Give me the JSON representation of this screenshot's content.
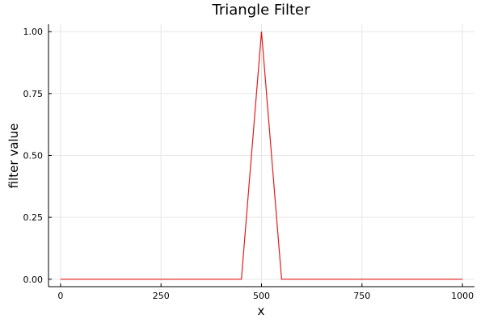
{
  "chart_data": {
    "type": "line",
    "title": "Triangle Filter",
    "xlabel": "x",
    "ylabel": "filter value",
    "xlim": [
      -30,
      1030
    ],
    "ylim": [
      -0.03,
      1.03
    ],
    "xticks": [
      0,
      250,
      500,
      750,
      1000
    ],
    "xtick_labels": [
      "0",
      "250",
      "500",
      "750",
      "1000"
    ],
    "yticks": [
      0,
      0.25,
      0.5,
      0.75,
      1.0
    ],
    "ytick_labels": [
      "0.00",
      "0.25",
      "0.50",
      "0.75",
      "1.00"
    ],
    "grid": true,
    "legend": "none",
    "series": [
      {
        "color": "#e41a1c",
        "x": [
          0,
          450,
          500,
          550,
          1000
        ],
        "y": [
          0,
          0,
          1,
          0,
          0
        ]
      }
    ]
  }
}
